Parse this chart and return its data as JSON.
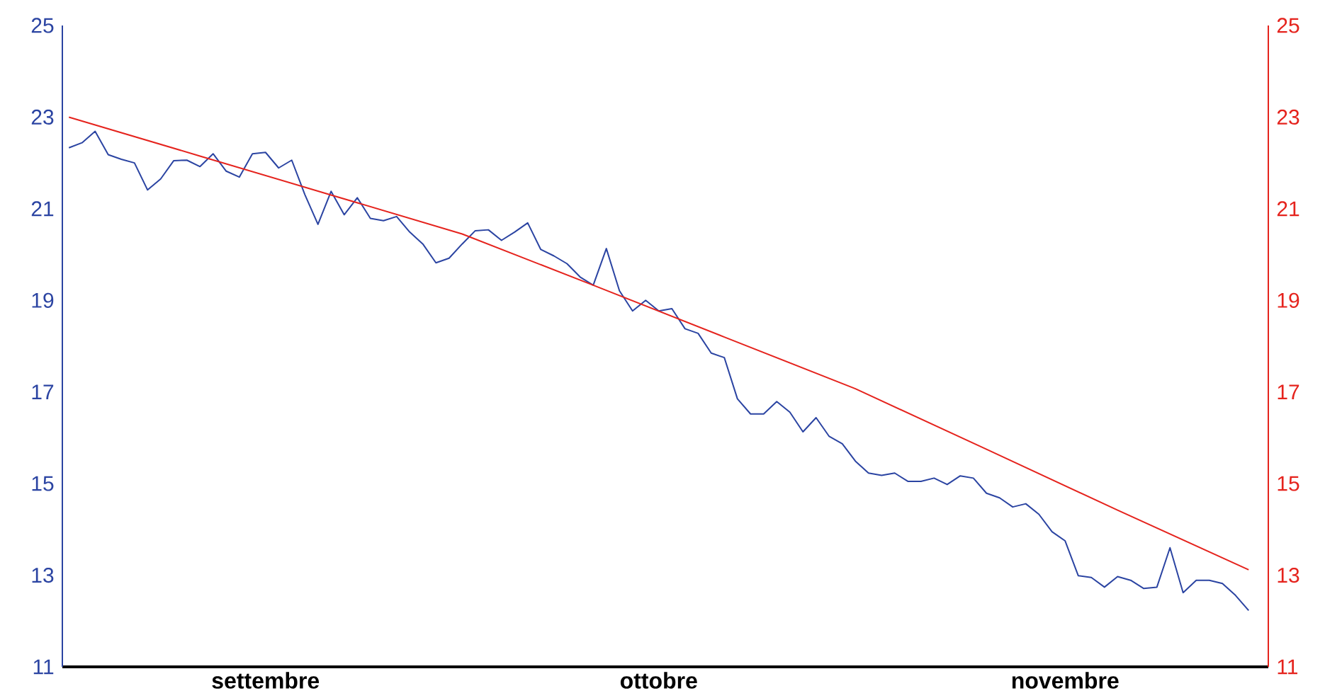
{
  "chart_data": {
    "type": "line",
    "categories": [
      null,
      null,
      null,
      null,
      null,
      null,
      null,
      null,
      null,
      null,
      null,
      null,
      null,
      null,
      null,
      "settembre",
      null,
      null,
      null,
      null,
      null,
      null,
      null,
      null,
      null,
      null,
      null,
      null,
      null,
      null,
      null,
      null,
      null,
      null,
      null,
      null,
      null,
      null,
      null,
      null,
      null,
      null,
      null,
      null,
      null,
      "ottobre",
      null,
      null,
      null,
      null,
      null,
      null,
      null,
      null,
      null,
      null,
      null,
      null,
      null,
      null,
      null,
      null,
      null,
      null,
      null,
      null,
      null,
      null,
      null,
      null,
      null,
      null,
      null,
      null,
      null,
      null,
      "novembre",
      null,
      null,
      null,
      null,
      null,
      null,
      null,
      null,
      null,
      null,
      null,
      null,
      null,
      null,
      null
    ],
    "ylim": [
      11,
      25
    ],
    "yticks": [
      11,
      13,
      15,
      17,
      19,
      21,
      23,
      25
    ],
    "y2lim": [
      11,
      25
    ],
    "y2ticks": [
      11,
      13,
      15,
      17,
      19,
      21,
      23,
      25
    ],
    "series": [
      {
        "color": "#2b44a2",
        "values": [
          22.33,
          22.44,
          22.69,
          22.18,
          22.08,
          22.0,
          21.41,
          21.65,
          22.05,
          22.06,
          21.92,
          22.2,
          21.82,
          21.69,
          22.2,
          22.23,
          21.89,
          22.06,
          21.31,
          20.66,
          21.38,
          20.87,
          21.24,
          20.79,
          20.74,
          20.83,
          20.49,
          20.23,
          19.82,
          19.92,
          20.23,
          20.52,
          20.54,
          20.31,
          20.49,
          20.69,
          20.11,
          19.97,
          19.8,
          19.51,
          19.33,
          20.13,
          19.21,
          18.77,
          19.0,
          18.77,
          18.82,
          18.38,
          18.28,
          17.85,
          17.75,
          16.85,
          16.52,
          16.52,
          16.79,
          16.56,
          16.13,
          16.44,
          16.03,
          15.87,
          15.49,
          15.23,
          15.18,
          15.23,
          15.05,
          15.05,
          15.12,
          14.98,
          15.17,
          15.12,
          14.79,
          14.69,
          14.49,
          14.56,
          14.33,
          13.95,
          13.75,
          12.99,
          12.95,
          12.74,
          12.97,
          12.89,
          12.71,
          12.74,
          13.6,
          12.62,
          12.89,
          12.89,
          12.82,
          12.56,
          12.23,
          null
        ]
      },
      {
        "color": "#e5231d",
        "axis": "y2",
        "type": "line",
        "values": [
          23.0,
          null,
          null,
          null,
          null,
          null,
          null,
          null,
          null,
          null,
          22.15,
          null,
          null,
          null,
          null,
          null,
          null,
          null,
          null,
          null,
          21.3,
          null,
          null,
          null,
          null,
          null,
          null,
          null,
          null,
          null,
          20.45,
          null,
          null,
          null,
          null,
          null,
          null,
          null,
          null,
          null,
          19.33,
          null,
          null,
          null,
          null,
          null,
          null,
          null,
          null,
          null,
          18.2,
          null,
          null,
          null,
          null,
          null,
          null,
          null,
          null,
          null,
          17.07,
          null,
          null,
          null,
          null,
          null,
          null,
          null,
          null,
          null,
          15.75,
          null,
          null,
          null,
          null,
          null,
          null,
          null,
          null,
          null,
          14.42,
          null,
          null,
          null,
          null,
          null,
          null,
          null,
          null,
          null,
          13.12,
          null
        ]
      }
    ]
  }
}
